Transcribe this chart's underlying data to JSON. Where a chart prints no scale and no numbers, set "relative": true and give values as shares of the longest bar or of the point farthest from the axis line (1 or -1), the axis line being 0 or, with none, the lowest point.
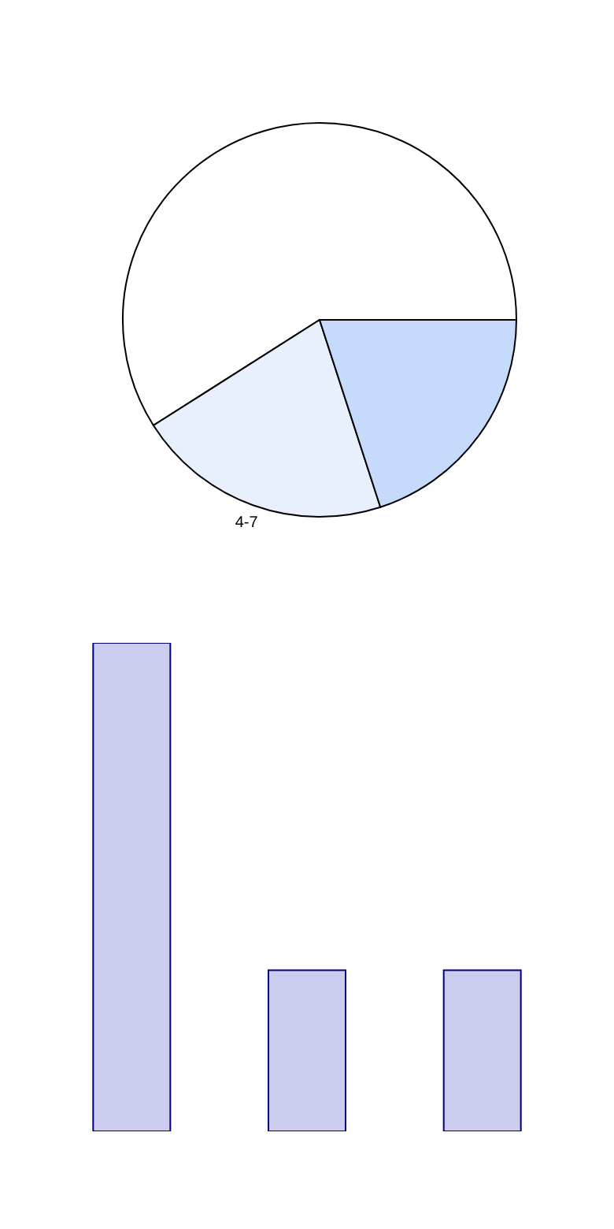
{
  "chart_data": [
    {
      "type": "pie",
      "categories": [
        null,
        "4-7",
        null
      ],
      "values": [
        59,
        21,
        20
      ],
      "colors": [
        "#ffffff",
        "#e8f0fe",
        "#c6dafc"
      ]
    },
    {
      "type": "bar",
      "relative": true,
      "categories": [
        null,
        null,
        null
      ],
      "values": [
        1,
        0.33,
        0.33
      ],
      "color": "#ccccee"
    }
  ]
}
